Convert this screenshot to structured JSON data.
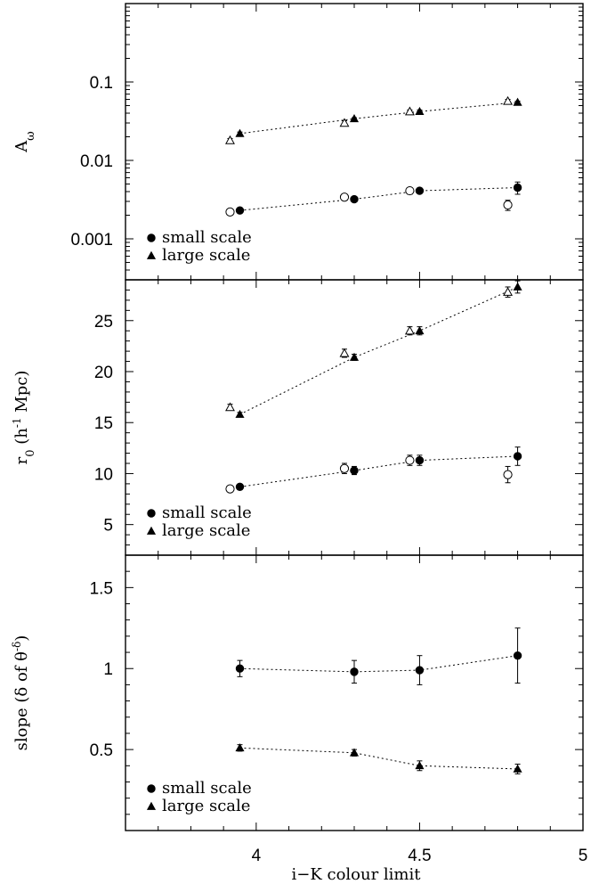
{
  "chart_data": {
    "type": "scatter",
    "xlabel": "i−K colour limit",
    "xlim": [
      3.6,
      5.0
    ],
    "x_ticks": [
      "4",
      "4.5",
      "5"
    ],
    "x_tick_values": [
      4,
      4.5,
      5
    ],
    "panels": [
      {
        "id": "amplitude",
        "ylabel_main": "A",
        "ylabel_sub": "ω",
        "yscale": "log",
        "ylim": [
          0.0003,
          1.0
        ],
        "y_ticks": [
          "0.1",
          "0.01",
          "0.001"
        ],
        "y_tick_values": [
          0.1,
          0.01,
          0.001
        ],
        "legend": [
          "small scale",
          "large scale"
        ],
        "series": [
          {
            "marker": "circle",
            "fill": "filled",
            "connected": true,
            "x": [
              3.95,
              4.3,
              4.5,
              4.8
            ],
            "y": [
              0.0023,
              0.0032,
              0.0041,
              0.0045
            ],
            "err": [
              0.0001,
              0.0002,
              0.0003,
              0.0008
            ]
          },
          {
            "marker": "circle",
            "fill": "open",
            "connected": false,
            "x": [
              3.92,
              4.27,
              4.47,
              4.77
            ],
            "y": [
              0.0022,
              0.0034,
              0.0041,
              0.0027
            ],
            "err": [
              0.0002,
              0.0003,
              0.0004,
              0.0004
            ]
          },
          {
            "marker": "triangle",
            "fill": "filled",
            "connected": true,
            "x": [
              3.95,
              4.3,
              4.5,
              4.8
            ],
            "y": [
              0.022,
              0.034,
              0.042,
              0.055
            ],
            "err": [
              0.001,
              0.001,
              0.002,
              0.002
            ]
          },
          {
            "marker": "triangle",
            "fill": "open",
            "connected": false,
            "x": [
              3.92,
              4.27,
              4.47,
              4.77
            ],
            "y": [
              0.018,
              0.03,
              0.042,
              0.057
            ],
            "err": [
              0.001,
              0.002,
              0.002,
              0.003
            ]
          }
        ]
      },
      {
        "id": "r0",
        "ylabel_main": "r",
        "ylabel_sub": "0",
        "ylabel_rest": "(h",
        "ylabel_sup": "-1",
        "ylabel_end": " Mpc)",
        "yscale": "linear",
        "ylim": [
          2.0,
          29.0
        ],
        "y_ticks": [
          "25",
          "20",
          "15",
          "10",
          "5"
        ],
        "y_tick_values": [
          25,
          20,
          15,
          10,
          5
        ],
        "legend": [
          "small scale",
          "large scale"
        ],
        "series": [
          {
            "marker": "circle",
            "fill": "filled",
            "connected": true,
            "x": [
              3.95,
              4.3,
              4.5,
              4.8
            ],
            "y": [
              8.7,
              10.3,
              11.3,
              11.7
            ],
            "err": [
              0.2,
              0.4,
              0.5,
              0.9
            ]
          },
          {
            "marker": "circle",
            "fill": "open",
            "connected": false,
            "x": [
              3.92,
              4.27,
              4.47,
              4.77
            ],
            "y": [
              8.5,
              10.5,
              11.3,
              9.9
            ],
            "err": [
              0.3,
              0.5,
              0.5,
              0.8
            ]
          },
          {
            "marker": "triangle",
            "fill": "filled",
            "connected": true,
            "x": [
              3.95,
              4.3,
              4.5,
              4.8
            ],
            "y": [
              15.8,
              21.4,
              24.0,
              28.3
            ],
            "err": [
              0.2,
              0.3,
              0.4,
              0.6
            ]
          },
          {
            "marker": "triangle",
            "fill": "open",
            "connected": false,
            "x": [
              3.92,
              4.27,
              4.47,
              4.77
            ],
            "y": [
              16.5,
              21.8,
              24.0,
              27.8
            ],
            "err": [
              0.3,
              0.4,
              0.4,
              0.5
            ]
          }
        ]
      },
      {
        "id": "slope",
        "ylabel_main": "slope (δ of θ",
        "ylabel_sup": "-δ",
        "ylabel_end": ")",
        "yscale": "linear",
        "ylim": [
          0.0,
          1.7
        ],
        "y_ticks": [
          "1.5",
          "1",
          "0.5"
        ],
        "y_tick_values": [
          1.5,
          1.0,
          0.5
        ],
        "legend": [
          "small scale",
          "large scale"
        ],
        "series": [
          {
            "marker": "circle",
            "fill": "filled",
            "connected": true,
            "x": [
              3.95,
              4.3,
              4.5,
              4.8
            ],
            "y": [
              1.0,
              0.98,
              0.99,
              1.08
            ],
            "err": [
              0.05,
              0.07,
              0.09,
              0.17
            ]
          },
          {
            "marker": "triangle",
            "fill": "filled",
            "connected": true,
            "x": [
              3.95,
              4.3,
              4.5,
              4.8
            ],
            "y": [
              0.51,
              0.48,
              0.4,
              0.38
            ],
            "err": [
              0.02,
              0.02,
              0.03,
              0.03
            ]
          }
        ]
      }
    ]
  }
}
